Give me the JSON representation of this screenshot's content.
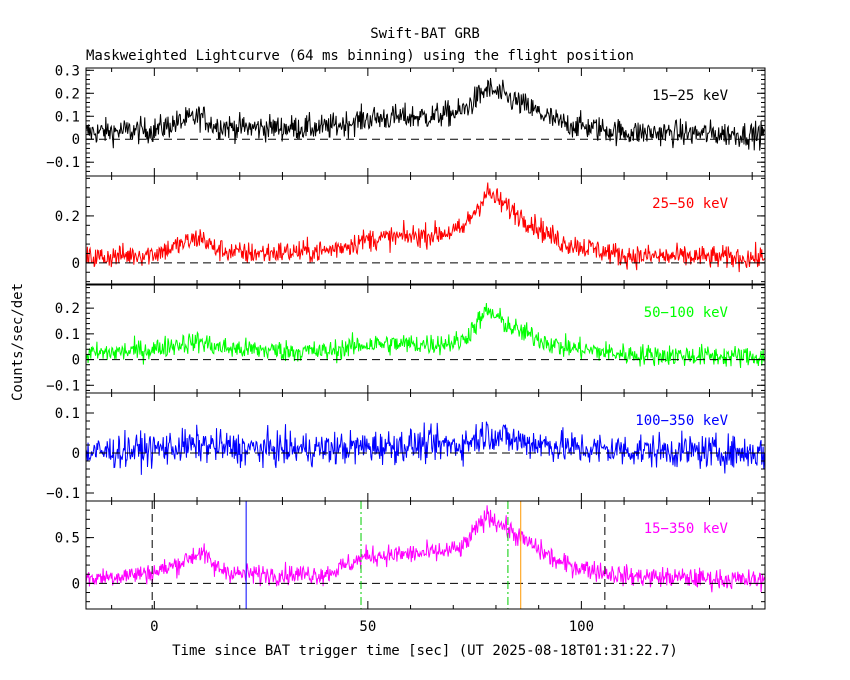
{
  "chart_data": {
    "type": "line",
    "title": "Swift-BAT GRB",
    "subtitle": "Maskweighted Lightcurve (64 ms binning) using the flight position",
    "xlabel": "Time since BAT trigger time [sec] (UT 2025-08-18T01:31:22.7)",
    "ylabel": "Counts/sec/det",
    "xlim": [
      -16,
      143
    ],
    "xticks": [
      0,
      50,
      100
    ],
    "xtick_labels": [
      "0",
      "50",
      "100"
    ],
    "bin_size_s": 0.064,
    "panels": [
      {
        "name": "15-25 keV",
        "label": "15−25 keV",
        "color": "#000000",
        "ylim": [
          -0.16,
          0.31
        ],
        "yticks": [
          -0.1,
          0,
          0.1,
          0.2,
          0.3
        ],
        "ytick_labels": [
          "−0.1",
          "0",
          "0.1",
          "0.2",
          "0.3"
        ],
        "noise": 0.04,
        "base": 0.04,
        "profile": [
          [
            -16,
            0.03
          ],
          [
            0,
            0.04
          ],
          [
            5,
            0.07
          ],
          [
            11,
            0.1
          ],
          [
            14,
            0.06
          ],
          [
            20,
            0.05
          ],
          [
            40,
            0.05
          ],
          [
            50,
            0.09
          ],
          [
            65,
            0.1
          ],
          [
            72,
            0.12
          ],
          [
            78,
            0.22
          ],
          [
            84,
            0.17
          ],
          [
            95,
            0.07
          ],
          [
            110,
            0.03
          ],
          [
            143,
            0.02
          ]
        ]
      },
      {
        "name": "25-50 keV",
        "label": "25−50 keV",
        "color": "#ff0000",
        "ylim": [
          -0.09,
          0.37
        ],
        "yticks": [
          0,
          0.2
        ],
        "ytick_labels": [
          "0",
          "0.2"
        ],
        "noise": 0.035,
        "base": 0.02,
        "profile": [
          [
            -16,
            0.02
          ],
          [
            0,
            0.04
          ],
          [
            5,
            0.07
          ],
          [
            11,
            0.11
          ],
          [
            14,
            0.06
          ],
          [
            20,
            0.04
          ],
          [
            40,
            0.05
          ],
          [
            50,
            0.1
          ],
          [
            65,
            0.12
          ],
          [
            72,
            0.14
          ],
          [
            78,
            0.3
          ],
          [
            84,
            0.22
          ],
          [
            95,
            0.09
          ],
          [
            110,
            0.03
          ],
          [
            143,
            0.02
          ]
        ]
      },
      {
        "name": "50-100 keV",
        "label": "50−100 keV",
        "color": "#00ff00",
        "ylim": [
          -0.13,
          0.29
        ],
        "yticks": [
          -0.1,
          0,
          0.1,
          0.2
        ],
        "ytick_labels": [
          "−0.1",
          "0",
          "0.1",
          "0.2"
        ],
        "noise": 0.03,
        "base": 0.02,
        "profile": [
          [
            -16,
            0.02
          ],
          [
            0,
            0.04
          ],
          [
            5,
            0.06
          ],
          [
            11,
            0.07
          ],
          [
            14,
            0.05
          ],
          [
            20,
            0.04
          ],
          [
            40,
            0.03
          ],
          [
            50,
            0.06
          ],
          [
            65,
            0.06
          ],
          [
            72,
            0.07
          ],
          [
            78,
            0.19
          ],
          [
            84,
            0.12
          ],
          [
            95,
            0.05
          ],
          [
            110,
            0.02
          ],
          [
            143,
            0.01
          ]
        ]
      },
      {
        "name": "100-350 keV",
        "label": "100−350 keV",
        "color": "#0000ff",
        "ylim": [
          -0.12,
          0.15
        ],
        "yticks": [
          -0.1,
          0,
          0.1
        ],
        "ytick_labels": [
          "−0.1",
          "0",
          "0.1"
        ],
        "noise": 0.03,
        "base": 0.0,
        "profile": [
          [
            -16,
            0.0
          ],
          [
            0,
            0.01
          ],
          [
            11,
            0.02
          ],
          [
            20,
            0.01
          ],
          [
            40,
            0.01
          ],
          [
            60,
            0.02
          ],
          [
            72,
            0.02
          ],
          [
            78,
            0.05
          ],
          [
            85,
            0.03
          ],
          [
            100,
            0.01
          ],
          [
            143,
            0.0
          ]
        ]
      },
      {
        "name": "15-350 keV",
        "label": "15−350 keV",
        "color": "#ff00ff",
        "ylim": [
          -0.28,
          0.9
        ],
        "yticks": [
          0,
          0.5
        ],
        "ytick_labels": [
          "0",
          "0.5"
        ],
        "noise": 0.08,
        "base": 0.05,
        "profile": [
          [
            -16,
            0.05
          ],
          [
            0,
            0.12
          ],
          [
            5,
            0.2
          ],
          [
            11,
            0.35
          ],
          [
            14,
            0.18
          ],
          [
            20,
            0.1
          ],
          [
            40,
            0.1
          ],
          [
            50,
            0.3
          ],
          [
            65,
            0.33
          ],
          [
            72,
            0.38
          ],
          [
            78,
            0.75
          ],
          [
            84,
            0.55
          ],
          [
            95,
            0.22
          ],
          [
            110,
            0.08
          ],
          [
            143,
            0.03
          ]
        ],
        "markers": [
          {
            "x": -0.5,
            "color": "#000000",
            "style": "dashed"
          },
          {
            "x": 21.5,
            "color": "#0000ff",
            "style": "solid"
          },
          {
            "x": 48.4,
            "color": "#00cc00",
            "style": "dashdot"
          },
          {
            "x": 82.8,
            "color": "#00cc00",
            "style": "dashdot"
          },
          {
            "x": 85.8,
            "color": "#ff9900",
            "style": "solid"
          },
          {
            "x": 105.5,
            "color": "#000000",
            "style": "dashed"
          }
        ]
      }
    ]
  }
}
